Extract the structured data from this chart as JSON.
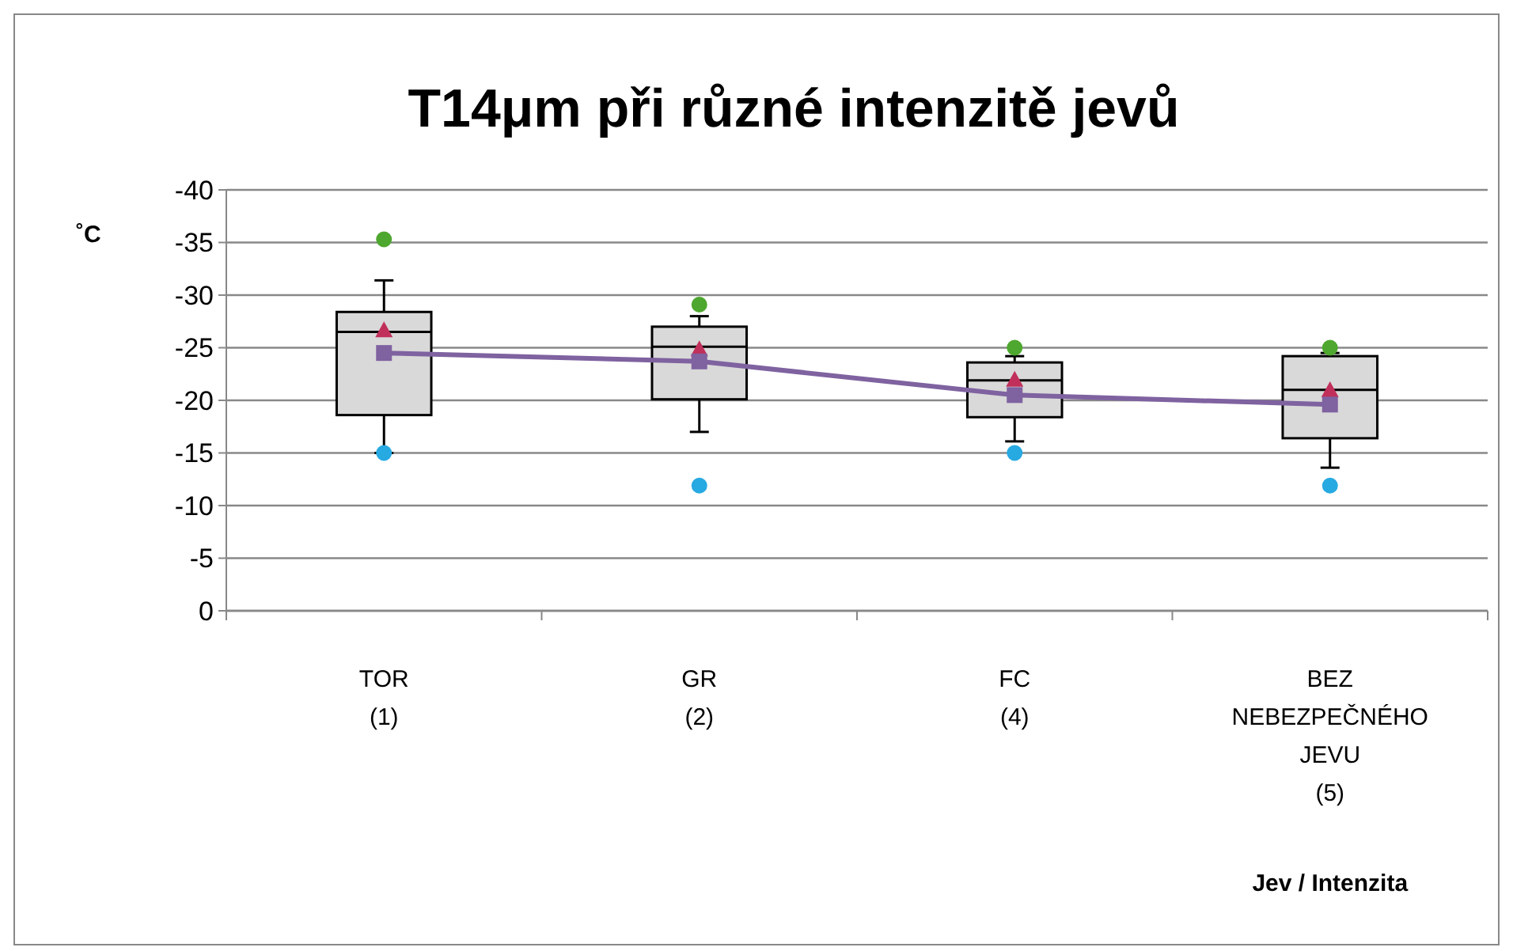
{
  "chart_data": {
    "type": "box",
    "title": "T14μm při různé intenzitě jevů",
    "xlabel": "Jev / Intenzita",
    "ylabel": "˚C",
    "categories": [
      "TOR\n(1)",
      "GR\n(2)",
      "FC\n(4)",
      "BEZ\nNEBEZPEČNÉHO\nJEVU\n(5)"
    ],
    "boxes": [
      {
        "low": -15.0,
        "q1": -18.6,
        "median": -26.5,
        "q3": -28.4,
        "high": -31.4
      },
      {
        "low": -17.0,
        "q1": -20.1,
        "median": -25.1,
        "q3": -27.0,
        "high": -28.0
      },
      {
        "low": -16.1,
        "q1": -18.4,
        "median": -21.9,
        "q3": -23.6,
        "high": -24.2
      },
      {
        "low": -13.6,
        "q1": -16.4,
        "median": -21.0,
        "q3": -24.2,
        "high": -24.5
      }
    ],
    "series": [
      {
        "type": "scatter",
        "marker": "circle",
        "color": "#4ea72e",
        "x": [
          "TOR\n(1)",
          "GR\n(2)",
          "FC\n(4)",
          "BEZ\nNEBEZPEČNÉHO\nJEVU\n(5)"
        ],
        "values": [
          -35.3,
          -29.1,
          -25.0,
          -25.0
        ]
      },
      {
        "type": "scatter",
        "marker": "circle",
        "color": "#27a9e1",
        "x": [
          "TOR\n(1)",
          "GR\n(2)",
          "FC\n(4)",
          "BEZ\nNEBEZPEČNÉHO\nJEVU\n(5)"
        ],
        "values": [
          -15.0,
          -11.9,
          -15.0,
          -11.9
        ]
      },
      {
        "type": "scatter",
        "marker": "triangle",
        "color": "#c0305a",
        "x": [
          "TOR\n(1)",
          "GR\n(2)",
          "FC\n(4)",
          "BEZ\nNEBEZPEČNÉHO\nJEVU\n(5)"
        ],
        "values": [
          -26.6,
          -24.8,
          -21.9,
          -20.9
        ]
      },
      {
        "type": "line",
        "marker": "square",
        "color": "#7f62a0",
        "x": [
          "TOR\n(1)",
          "GR\n(2)",
          "FC\n(4)",
          "BEZ\nNEBEZPEČNÉHO\nJEVU\n(5)"
        ],
        "values": [
          -24.5,
          -23.7,
          -20.5,
          -19.6
        ]
      }
    ],
    "ylim": [
      0,
      -40
    ],
    "yticks": [
      0,
      -5,
      -10,
      -15,
      -20,
      -25,
      -30,
      -35,
      -40
    ],
    "grid": "y"
  }
}
